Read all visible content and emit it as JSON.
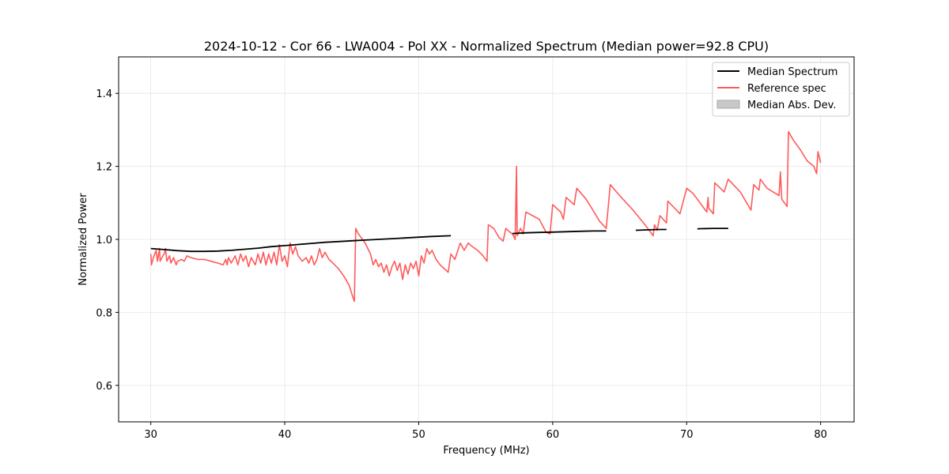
{
  "chart_data": {
    "type": "line",
    "title": "2024-10-12 - Cor 66 - LWA004 - Pol XX - Normalized Spectrum (Median power=92.8 CPU)",
    "xlabel": "Frequency (MHz)",
    "ylabel": "Normalized Power",
    "xlim": [
      27.6,
      82.5
    ],
    "ylim": [
      0.5,
      1.5
    ],
    "grid": true,
    "legend_position": "top-right",
    "x_ticks": [
      30,
      40,
      50,
      60,
      70,
      80
    ],
    "x_tick_labels": [
      "30",
      "40",
      "50",
      "60",
      "70",
      "80"
    ],
    "y_ticks": [
      0.6,
      0.8,
      1.0,
      1.2,
      1.4
    ],
    "y_tick_labels": [
      "0.6",
      "0.8",
      "1.0",
      "1.2",
      "1.4"
    ],
    "series": [
      {
        "name": "Median Spectrum",
        "color": "#000000",
        "segments": [
          [
            [
              30.0,
              0.975
            ],
            [
              31.0,
              0.972
            ],
            [
              32.0,
              0.969
            ],
            [
              33.0,
              0.967
            ],
            [
              34.0,
              0.967
            ],
            [
              35.0,
              0.968
            ],
            [
              36.0,
              0.97
            ],
            [
              37.0,
              0.973
            ],
            [
              38.0,
              0.976
            ],
            [
              39.0,
              0.98
            ],
            [
              40.0,
              0.983
            ],
            [
              41.0,
              0.986
            ],
            [
              42.0,
              0.989
            ],
            [
              43.0,
              0.992
            ],
            [
              44.0,
              0.994
            ],
            [
              45.0,
              0.996
            ],
            [
              46.0,
              0.998
            ],
            [
              47.0,
              1.0
            ],
            [
              48.0,
              1.002
            ],
            [
              49.0,
              1.004
            ],
            [
              50.0,
              1.006
            ],
            [
              51.0,
              1.008
            ],
            [
              52.4,
              1.01
            ]
          ],
          [
            [
              57.0,
              1.016
            ],
            [
              58.0,
              1.018
            ],
            [
              59.0,
              1.019
            ],
            [
              60.0,
              1.02
            ],
            [
              61.0,
              1.021
            ],
            [
              62.0,
              1.022
            ],
            [
              63.0,
              1.023
            ],
            [
              64.0,
              1.023
            ]
          ],
          [
            [
              66.2,
              1.025
            ],
            [
              67.0,
              1.026
            ],
            [
              68.0,
              1.027
            ],
            [
              68.5,
              1.027
            ]
          ],
          [
            [
              70.8,
              1.029
            ],
            [
              72.0,
              1.03
            ],
            [
              73.1,
              1.03
            ]
          ]
        ]
      },
      {
        "name": "Reference spec",
        "color": "#ff5a5a",
        "points": [
          [
            30.0,
            0.96
          ],
          [
            30.05,
            0.93
          ],
          [
            30.2,
            0.95
          ],
          [
            30.4,
            0.97
          ],
          [
            30.5,
            0.94
          ],
          [
            30.65,
            0.975
          ],
          [
            30.7,
            0.94
          ],
          [
            30.9,
            0.955
          ],
          [
            31.0,
            0.96
          ],
          [
            31.1,
            0.975
          ],
          [
            31.2,
            0.94
          ],
          [
            31.4,
            0.955
          ],
          [
            31.5,
            0.935
          ],
          [
            31.7,
            0.95
          ],
          [
            31.9,
            0.93
          ],
          [
            32.0,
            0.94
          ],
          [
            32.3,
            0.945
          ],
          [
            32.5,
            0.94
          ],
          [
            32.7,
            0.955
          ],
          [
            33.0,
            0.95
          ],
          [
            33.5,
            0.945
          ],
          [
            34.0,
            0.945
          ],
          [
            34.5,
            0.94
          ],
          [
            35.0,
            0.935
          ],
          [
            35.4,
            0.93
          ],
          [
            35.6,
            0.945
          ],
          [
            35.7,
            0.93
          ],
          [
            35.8,
            0.95
          ],
          [
            36.0,
            0.935
          ],
          [
            36.3,
            0.955
          ],
          [
            36.5,
            0.93
          ],
          [
            36.7,
            0.96
          ],
          [
            36.9,
            0.94
          ],
          [
            37.1,
            0.955
          ],
          [
            37.3,
            0.925
          ],
          [
            37.5,
            0.95
          ],
          [
            37.8,
            0.93
          ],
          [
            38.0,
            0.96
          ],
          [
            38.2,
            0.935
          ],
          [
            38.4,
            0.965
          ],
          [
            38.6,
            0.93
          ],
          [
            38.8,
            0.96
          ],
          [
            39.0,
            0.935
          ],
          [
            39.2,
            0.965
          ],
          [
            39.4,
            0.93
          ],
          [
            39.6,
            0.985
          ],
          [
            39.8,
            0.94
          ],
          [
            40.0,
            0.955
          ],
          [
            40.2,
            0.925
          ],
          [
            40.4,
            0.99
          ],
          [
            40.6,
            0.96
          ],
          [
            40.8,
            0.98
          ],
          [
            41.0,
            0.955
          ],
          [
            41.3,
            0.94
          ],
          [
            41.6,
            0.95
          ],
          [
            41.8,
            0.935
          ],
          [
            42.0,
            0.955
          ],
          [
            42.2,
            0.93
          ],
          [
            42.4,
            0.945
          ],
          [
            42.6,
            0.975
          ],
          [
            42.8,
            0.95
          ],
          [
            43.0,
            0.965
          ],
          [
            43.3,
            0.945
          ],
          [
            43.6,
            0.935
          ],
          [
            44.0,
            0.92
          ],
          [
            44.4,
            0.9
          ],
          [
            44.8,
            0.875
          ],
          [
            45.1,
            0.84
          ],
          [
            45.2,
            0.83
          ],
          [
            45.3,
            1.03
          ],
          [
            45.5,
            1.015
          ],
          [
            46.0,
            0.99
          ],
          [
            46.4,
            0.96
          ],
          [
            46.6,
            0.93
          ],
          [
            46.8,
            0.945
          ],
          [
            47.0,
            0.925
          ],
          [
            47.2,
            0.935
          ],
          [
            47.4,
            0.91
          ],
          [
            47.6,
            0.93
          ],
          [
            47.8,
            0.9
          ],
          [
            48.0,
            0.925
          ],
          [
            48.2,
            0.94
          ],
          [
            48.4,
            0.915
          ],
          [
            48.6,
            0.935
          ],
          [
            48.8,
            0.89
          ],
          [
            49.0,
            0.93
          ],
          [
            49.2,
            0.905
          ],
          [
            49.4,
            0.935
          ],
          [
            49.6,
            0.92
          ],
          [
            49.8,
            0.94
          ],
          [
            50.0,
            0.9
          ],
          [
            50.2,
            0.955
          ],
          [
            50.4,
            0.935
          ],
          [
            50.6,
            0.975
          ],
          [
            50.8,
            0.96
          ],
          [
            51.0,
            0.97
          ],
          [
            51.3,
            0.945
          ],
          [
            51.6,
            0.93
          ],
          [
            51.9,
            0.92
          ],
          [
            52.2,
            0.91
          ],
          [
            52.4,
            0.96
          ],
          [
            52.7,
            0.945
          ],
          [
            53.1,
            0.99
          ],
          [
            53.4,
            0.97
          ],
          [
            53.7,
            0.99
          ],
          [
            54.0,
            0.98
          ],
          [
            54.4,
            0.97
          ],
          [
            54.8,
            0.955
          ],
          [
            55.1,
            0.94
          ],
          [
            55.2,
            1.04
          ],
          [
            55.6,
            1.03
          ],
          [
            56.0,
            1.005
          ],
          [
            56.3,
            0.995
          ],
          [
            56.5,
            1.03
          ],
          [
            56.8,
            1.02
          ],
          [
            57.0,
            1.015
          ],
          [
            57.2,
            1.0
          ],
          [
            57.3,
            1.2
          ],
          [
            57.35,
            1.01
          ],
          [
            57.6,
            1.03
          ],
          [
            57.8,
            1.015
          ],
          [
            58.0,
            1.075
          ],
          [
            58.5,
            1.065
          ],
          [
            59.0,
            1.055
          ],
          [
            59.5,
            1.02
          ],
          [
            59.8,
            1.015
          ],
          [
            60.0,
            1.095
          ],
          [
            60.6,
            1.075
          ],
          [
            60.8,
            1.055
          ],
          [
            61.0,
            1.115
          ],
          [
            61.6,
            1.095
          ],
          [
            61.8,
            1.14
          ],
          [
            62.5,
            1.11
          ],
          [
            63.0,
            1.08
          ],
          [
            63.5,
            1.05
          ],
          [
            64.0,
            1.03
          ],
          [
            64.3,
            1.15
          ],
          [
            65.0,
            1.12
          ],
          [
            66.0,
            1.08
          ],
          [
            67.0,
            1.035
          ],
          [
            67.5,
            1.01
          ],
          [
            67.6,
            1.04
          ],
          [
            67.8,
            1.025
          ],
          [
            68.0,
            1.065
          ],
          [
            68.5,
            1.045
          ],
          [
            68.6,
            1.105
          ],
          [
            69.5,
            1.07
          ],
          [
            70.0,
            1.14
          ],
          [
            70.5,
            1.125
          ],
          [
            71.0,
            1.1
          ],
          [
            71.5,
            1.075
          ],
          [
            71.6,
            1.115
          ],
          [
            71.65,
            1.085
          ],
          [
            72.0,
            1.07
          ],
          [
            72.1,
            1.155
          ],
          [
            72.8,
            1.13
          ],
          [
            73.1,
            1.165
          ],
          [
            74.0,
            1.13
          ],
          [
            74.8,
            1.08
          ],
          [
            75.0,
            1.15
          ],
          [
            75.4,
            1.135
          ],
          [
            75.5,
            1.165
          ],
          [
            76.0,
            1.14
          ],
          [
            76.9,
            1.12
          ],
          [
            77.0,
            1.185
          ],
          [
            77.1,
            1.11
          ],
          [
            77.5,
            1.09
          ],
          [
            77.6,
            1.295
          ],
          [
            78.0,
            1.27
          ],
          [
            78.5,
            1.245
          ],
          [
            79.0,
            1.215
          ],
          [
            79.5,
            1.2
          ],
          [
            79.7,
            1.18
          ],
          [
            79.8,
            1.24
          ],
          [
            80.0,
            1.21
          ]
        ]
      },
      {
        "name": "Median Abs. Dev.",
        "color": "#c8c8c8",
        "points": []
      }
    ]
  }
}
